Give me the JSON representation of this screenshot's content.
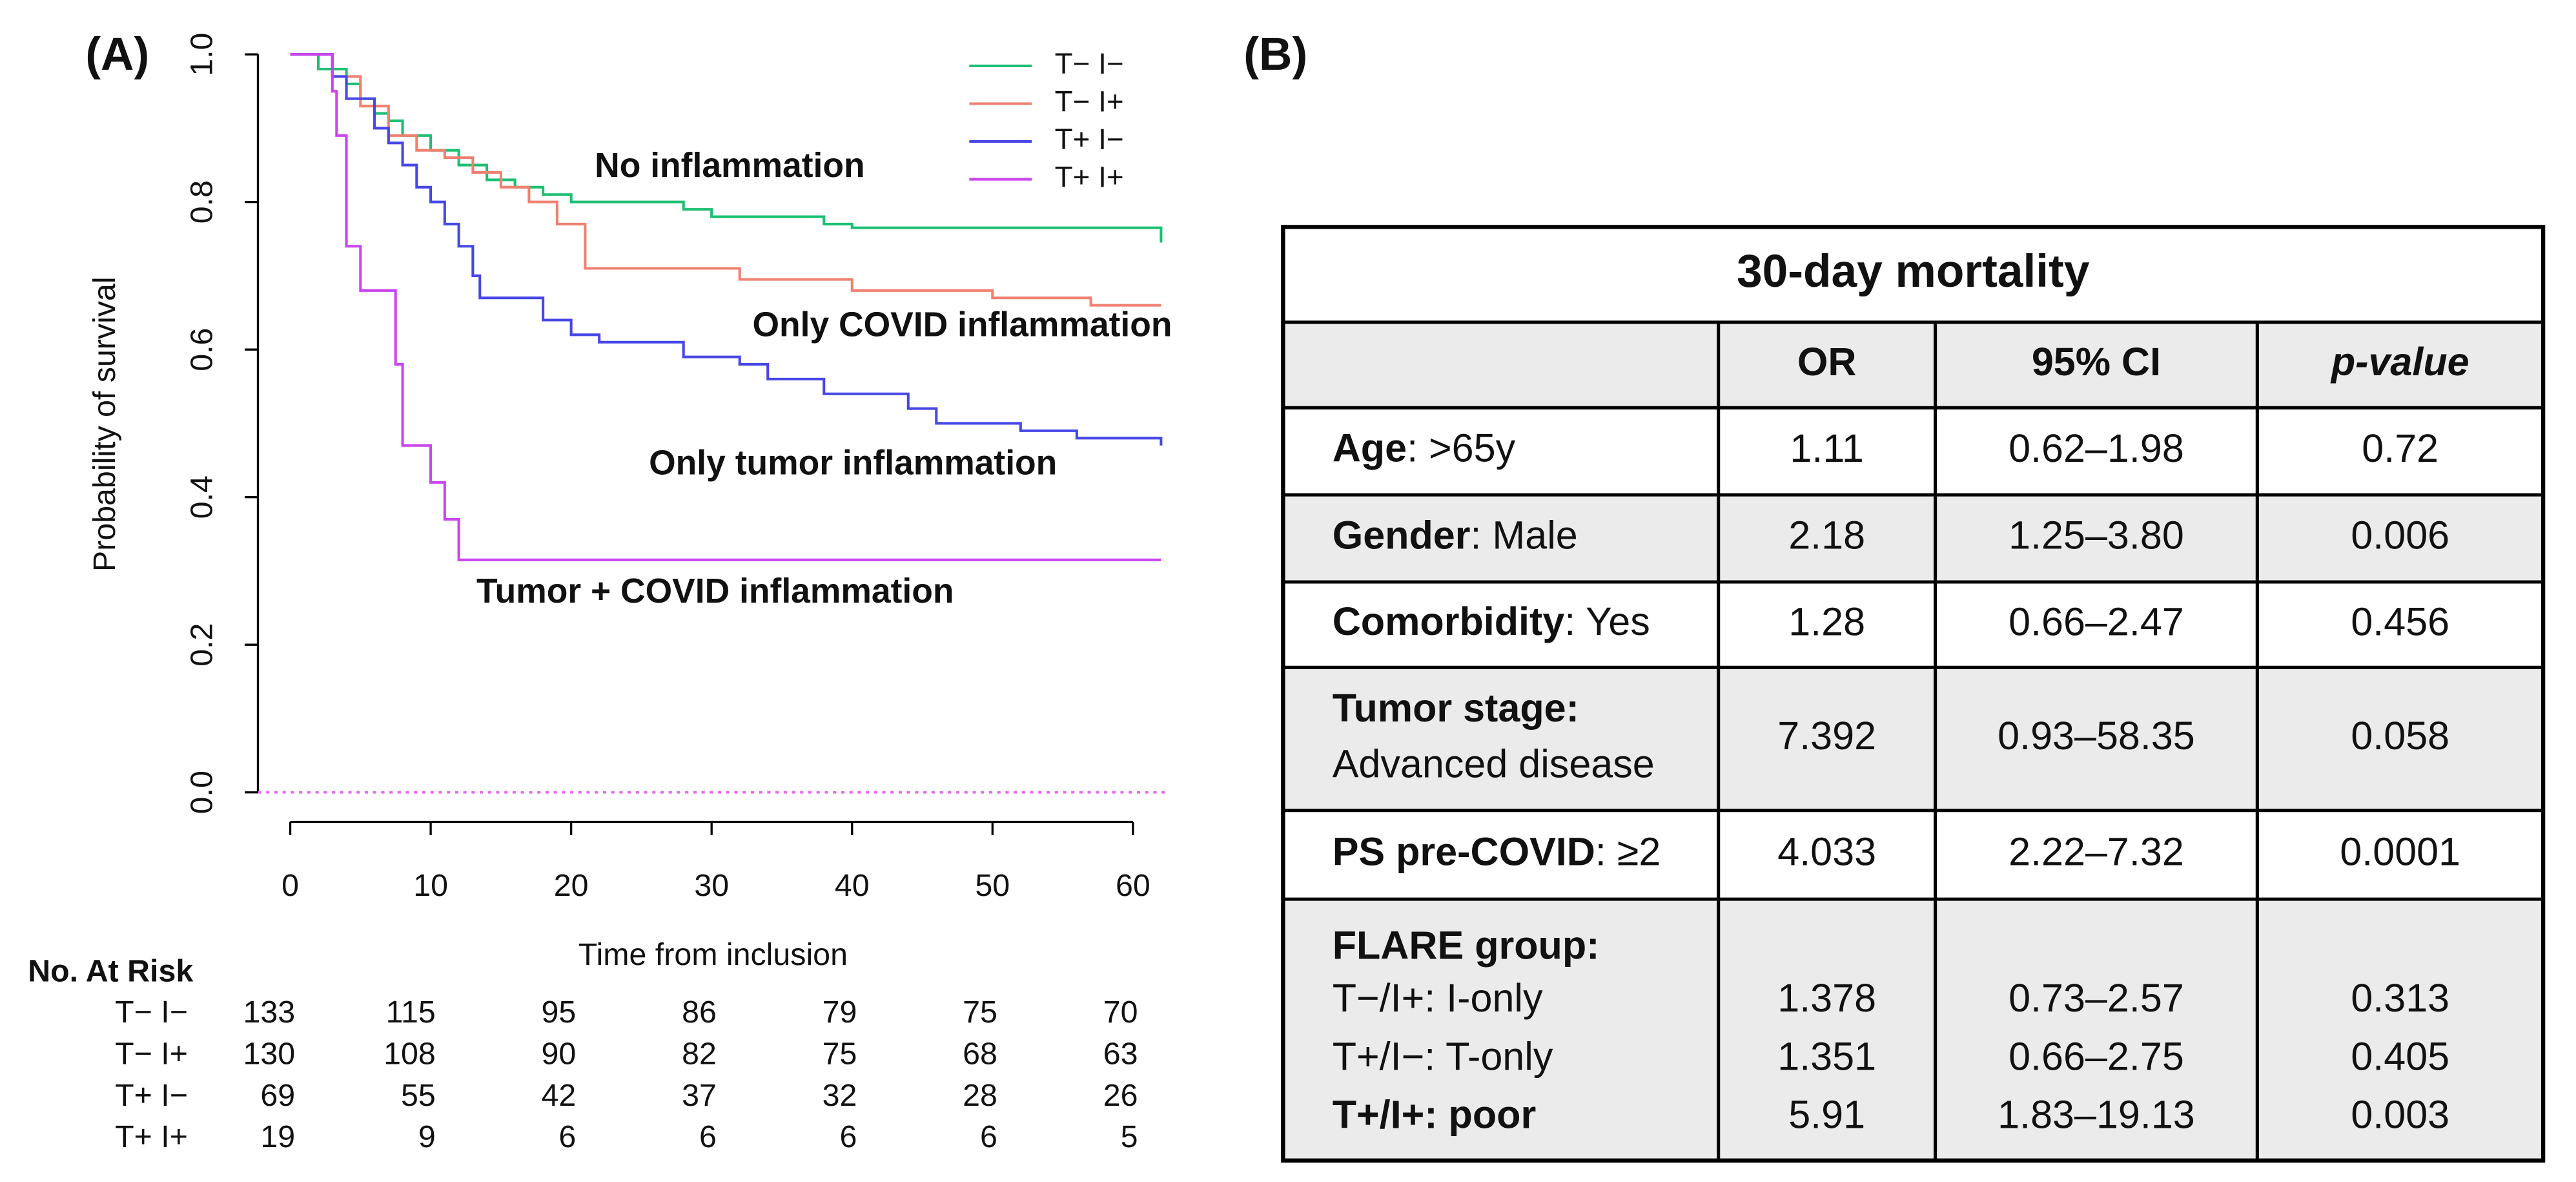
{
  "panel_a_label": "(A)",
  "panel_b_label": "(B)",
  "chart_data": {
    "type": "line",
    "step": true,
    "xlabel": "Time from inclusion",
    "ylabel": "Probability of survival",
    "xlim": [
      -2.3,
      62.5
    ],
    "ylim": [
      0,
      1
    ],
    "xticks": [
      0,
      10,
      20,
      30,
      40,
      50,
      60
    ],
    "yticks": [
      {
        "value": 0,
        "label": "0.0"
      },
      {
        "value": 0.2,
        "label": "0.2"
      },
      {
        "value": 0.4,
        "label": "0.4"
      },
      {
        "value": 0.6,
        "label": "0.6"
      },
      {
        "value": 0.8,
        "label": "0.8"
      },
      {
        "value": 1,
        "label": "1.0"
      }
    ],
    "hline": 0,
    "hline_color": "#e86af0",
    "legend": "topright",
    "series": [
      {
        "name": "T− I−",
        "color": "#1dbf73",
        "x": [
          0,
          2,
          4,
          5,
          6,
          7,
          8,
          10,
          12,
          14,
          16,
          18,
          20,
          28,
          30,
          38,
          40,
          62
        ],
        "values": [
          1,
          0.98,
          0.96,
          0.94,
          0.92,
          0.91,
          0.89,
          0.87,
          0.85,
          0.83,
          0.82,
          0.81,
          0.8,
          0.79,
          0.78,
          0.77,
          0.765,
          0.745
        ]
      },
      {
        "name": "T− I+",
        "color": "#f08070",
        "x": [
          0,
          3,
          5,
          7,
          9,
          11,
          13,
          15,
          17,
          19,
          21,
          32,
          40,
          50,
          57,
          62
        ],
        "values": [
          1,
          0.97,
          0.93,
          0.89,
          0.87,
          0.86,
          0.84,
          0.82,
          0.8,
          0.77,
          0.71,
          0.695,
          0.68,
          0.67,
          0.66,
          0.66
        ]
      },
      {
        "name": "T+ I−",
        "color": "#4747e6",
        "x": [
          0,
          3,
          4,
          6,
          7,
          8,
          9,
          10,
          11,
          12,
          13,
          13.5,
          18,
          20,
          22,
          28,
          32,
          34,
          38,
          44,
          46,
          52,
          56,
          62
        ],
        "values": [
          1,
          0.97,
          0.94,
          0.9,
          0.88,
          0.85,
          0.82,
          0.8,
          0.77,
          0.74,
          0.7,
          0.67,
          0.64,
          0.62,
          0.61,
          0.59,
          0.58,
          0.56,
          0.54,
          0.52,
          0.5,
          0.49,
          0.48,
          0.47
        ]
      },
      {
        "name": "T+ I+",
        "color": "#cc44ee",
        "x": [
          0,
          3,
          3.3,
          4,
          5,
          7.5,
          8,
          10,
          11,
          12,
          62
        ],
        "values": [
          1,
          0.95,
          0.89,
          0.74,
          0.68,
          0.58,
          0.47,
          0.42,
          0.37,
          0.315,
          0.315
        ]
      }
    ],
    "annotations": [
      {
        "text": "No inflammation",
        "color": "#1daa5a"
      },
      {
        "text": "Only COVID inflammation",
        "color": "#e8652c"
      },
      {
        "text": "Only tumor inflammation",
        "color": "#2a5db0"
      },
      {
        "text": "Tumor + COVID inflammation",
        "color": "#9b30c8"
      }
    ]
  },
  "risk_table": {
    "title": "No. At Risk",
    "rows": [
      {
        "label": "T− I−",
        "values": [
          "133",
          "115",
          "95",
          "86",
          "79",
          "75",
          "70"
        ]
      },
      {
        "label": "T− I+",
        "values": [
          "130",
          "108",
          "90",
          "82",
          "75",
          "68",
          "63"
        ]
      },
      {
        "label": "T+ I−",
        "values": [
          "69",
          "55",
          "42",
          "37",
          "32",
          "28",
          "26"
        ]
      },
      {
        "label": "T+ I+",
        "values": [
          "19",
          "9",
          "6",
          "6",
          "6",
          "6",
          "5"
        ]
      }
    ]
  },
  "table": {
    "title": "30-day mortality",
    "columns": [
      "OR",
      "95% CI",
      "p-value"
    ],
    "rows": [
      {
        "label": "Age",
        "detail": ": >65y",
        "values": [
          "1.11",
          "0.62–1.98",
          "0.72"
        ]
      },
      {
        "label": "Gender",
        "detail": ": Male",
        "values": [
          "2.18",
          "1.25–3.80",
          "0.006"
        ]
      },
      {
        "label": "Comorbidity",
        "detail": ": Yes",
        "values": [
          "1.28",
          "0.66–2.47",
          "0.456"
        ]
      },
      {
        "label": "Tumor stage:",
        "detail": "Advanced disease",
        "values": [
          "7.392",
          "0.93–58.35",
          "0.058"
        ]
      },
      {
        "label": "PS pre-COVID",
        "detail": ": ≥2",
        "values": [
          "4.033",
          "2.22–7.32",
          "0.0001"
        ]
      },
      {
        "label": "FLARE group:",
        "subrows": [
          {
            "label": "T−/I+: I-only",
            "values": [
              "1.378",
              "0.73–2.57",
              "0.313"
            ]
          },
          {
            "label": "T+/I−: T-only",
            "values": [
              "1.351",
              "0.66–2.75",
              "0.405"
            ]
          },
          {
            "label": "T+/I+: poor",
            "bold": true,
            "values": [
              "5.91",
              "1.83–19.13",
              "0.003"
            ]
          }
        ]
      }
    ]
  }
}
